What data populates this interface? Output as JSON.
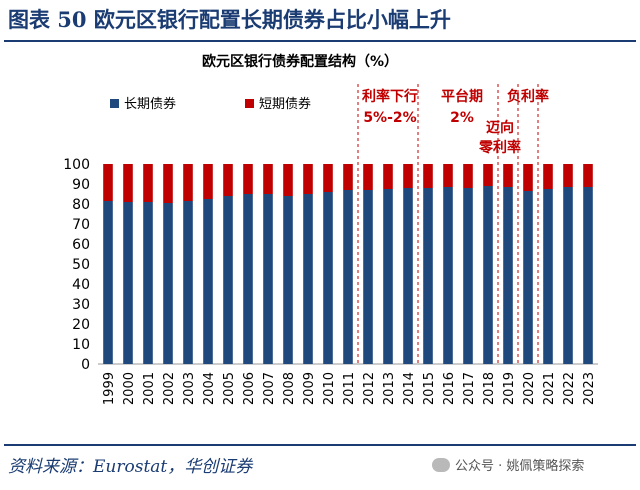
{
  "figure": {
    "title": "图表 50  欧元区银行配置长期债券占比小幅上升",
    "source": "资料来源：Eurostat，华创证券",
    "watermark": "公众号 · 姚佩策略探索"
  },
  "colors": {
    "long": "#1f497d",
    "short": "#c00000",
    "header": "#1a3c73",
    "annot": "#c00000"
  },
  "chart_data": {
    "type": "bar",
    "stacked": true,
    "title": "欧元区银行债券配置结构（%）",
    "categories": [
      "1999",
      "2000",
      "2001",
      "2002",
      "2003",
      "2004",
      "2005",
      "2006",
      "2007",
      "2008",
      "2009",
      "2010",
      "2011",
      "2012",
      "2013",
      "2014",
      "2015",
      "2016",
      "2017",
      "2018",
      "2019",
      "2020",
      "2021",
      "2022",
      "2023"
    ],
    "series": [
      {
        "name": "长期债券",
        "color": "#1f497d",
        "values": [
          81.5,
          81,
          81,
          80.5,
          81.5,
          82.5,
          84,
          85,
          85,
          84,
          85,
          86,
          87,
          87,
          87.5,
          88,
          88,
          88.5,
          88,
          89,
          88.5,
          86.5,
          87.5,
          88.5,
          88.5
        ]
      },
      {
        "name": "短期债券",
        "color": "#c00000",
        "values": [
          18.5,
          19,
          19,
          19.5,
          18.5,
          17.5,
          16,
          15,
          15,
          16,
          15,
          14,
          13,
          13,
          12.5,
          12,
          12,
          11.5,
          12,
          11,
          11.5,
          13.5,
          12.5,
          11.5,
          11.5
        ]
      }
    ],
    "ylim": [
      0,
      100
    ],
    "yticks": [
      0,
      10,
      20,
      30,
      40,
      50,
      60,
      70,
      80,
      90,
      100
    ],
    "legend": "top-left",
    "annotations": [
      {
        "lines": [
          "利率下行",
          "5%-2%"
        ],
        "after_category": "2011"
      },
      {
        "lines": [
          "平台期",
          "2%"
        ],
        "after_category": "2014"
      },
      {
        "lines": [
          "迈向",
          "零利率"
        ],
        "after_category": "2018"
      },
      {
        "lines": [
          "负利率"
        ],
        "after_category": "2019"
      },
      {
        "lines": [],
        "after_category": "2020"
      }
    ]
  }
}
